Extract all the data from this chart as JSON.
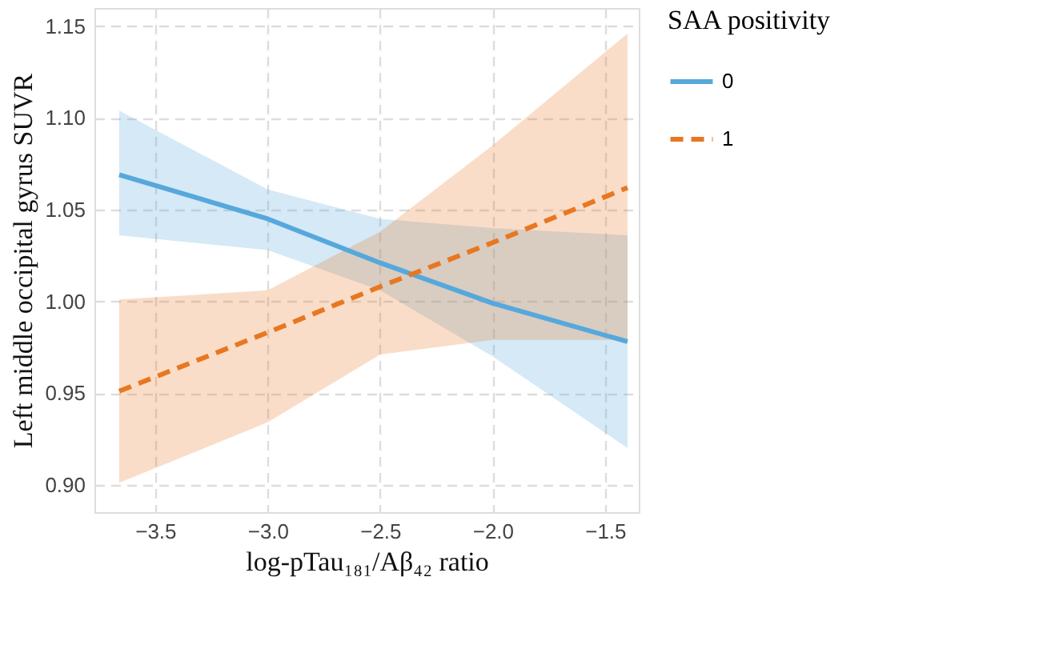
{
  "chart_data": {
    "type": "line",
    "xlabel": "log-pTau₁₈₁/Aβ₄₂ ratio",
    "ylabel": "Left middle occipital gyrus SUVR",
    "legend_title": "SAA positivity",
    "x": [
      -3.66,
      -3.0,
      -2.5,
      -2.0,
      -1.4
    ],
    "series": [
      {
        "name": "0",
        "color": "#56a8dc",
        "line_style": "solid",
        "values": [
          1.069,
          1.045,
          1.021,
          0.999,
          0.978
        ],
        "lower": [
          1.036,
          1.028,
          1.006,
          0.97,
          0.92
        ],
        "upper": [
          1.104,
          1.061,
          1.045,
          1.04,
          1.036
        ]
      },
      {
        "name": "1",
        "color": "#e87722",
        "line_style": "dashed",
        "values": [
          0.951,
          0.983,
          1.008,
          1.032,
          1.062
        ],
        "lower": [
          0.901,
          0.934,
          0.971,
          0.979,
          0.979
        ],
        "upper": [
          1.001,
          1.006,
          1.038,
          1.085,
          1.146
        ]
      }
    ],
    "xlim": [
      -3.77,
      -1.35
    ],
    "ylim": [
      0.885,
      1.16
    ],
    "xticks": [
      -3.5,
      {
        "value": -3.0,
        "label": "−3.0"
      },
      -2.5,
      {
        "value": -2.0,
        "label": "−2.0"
      },
      -1.5
    ],
    "yticks": [
      {
        "value": 0.9,
        "label": "0.90"
      },
      0.95,
      {
        "value": 1.0,
        "label": "1.00"
      },
      1.05,
      {
        "value": 1.1,
        "label": "1.10"
      },
      1.15
    ],
    "grid": true,
    "legend": "right",
    "marker": "none"
  }
}
